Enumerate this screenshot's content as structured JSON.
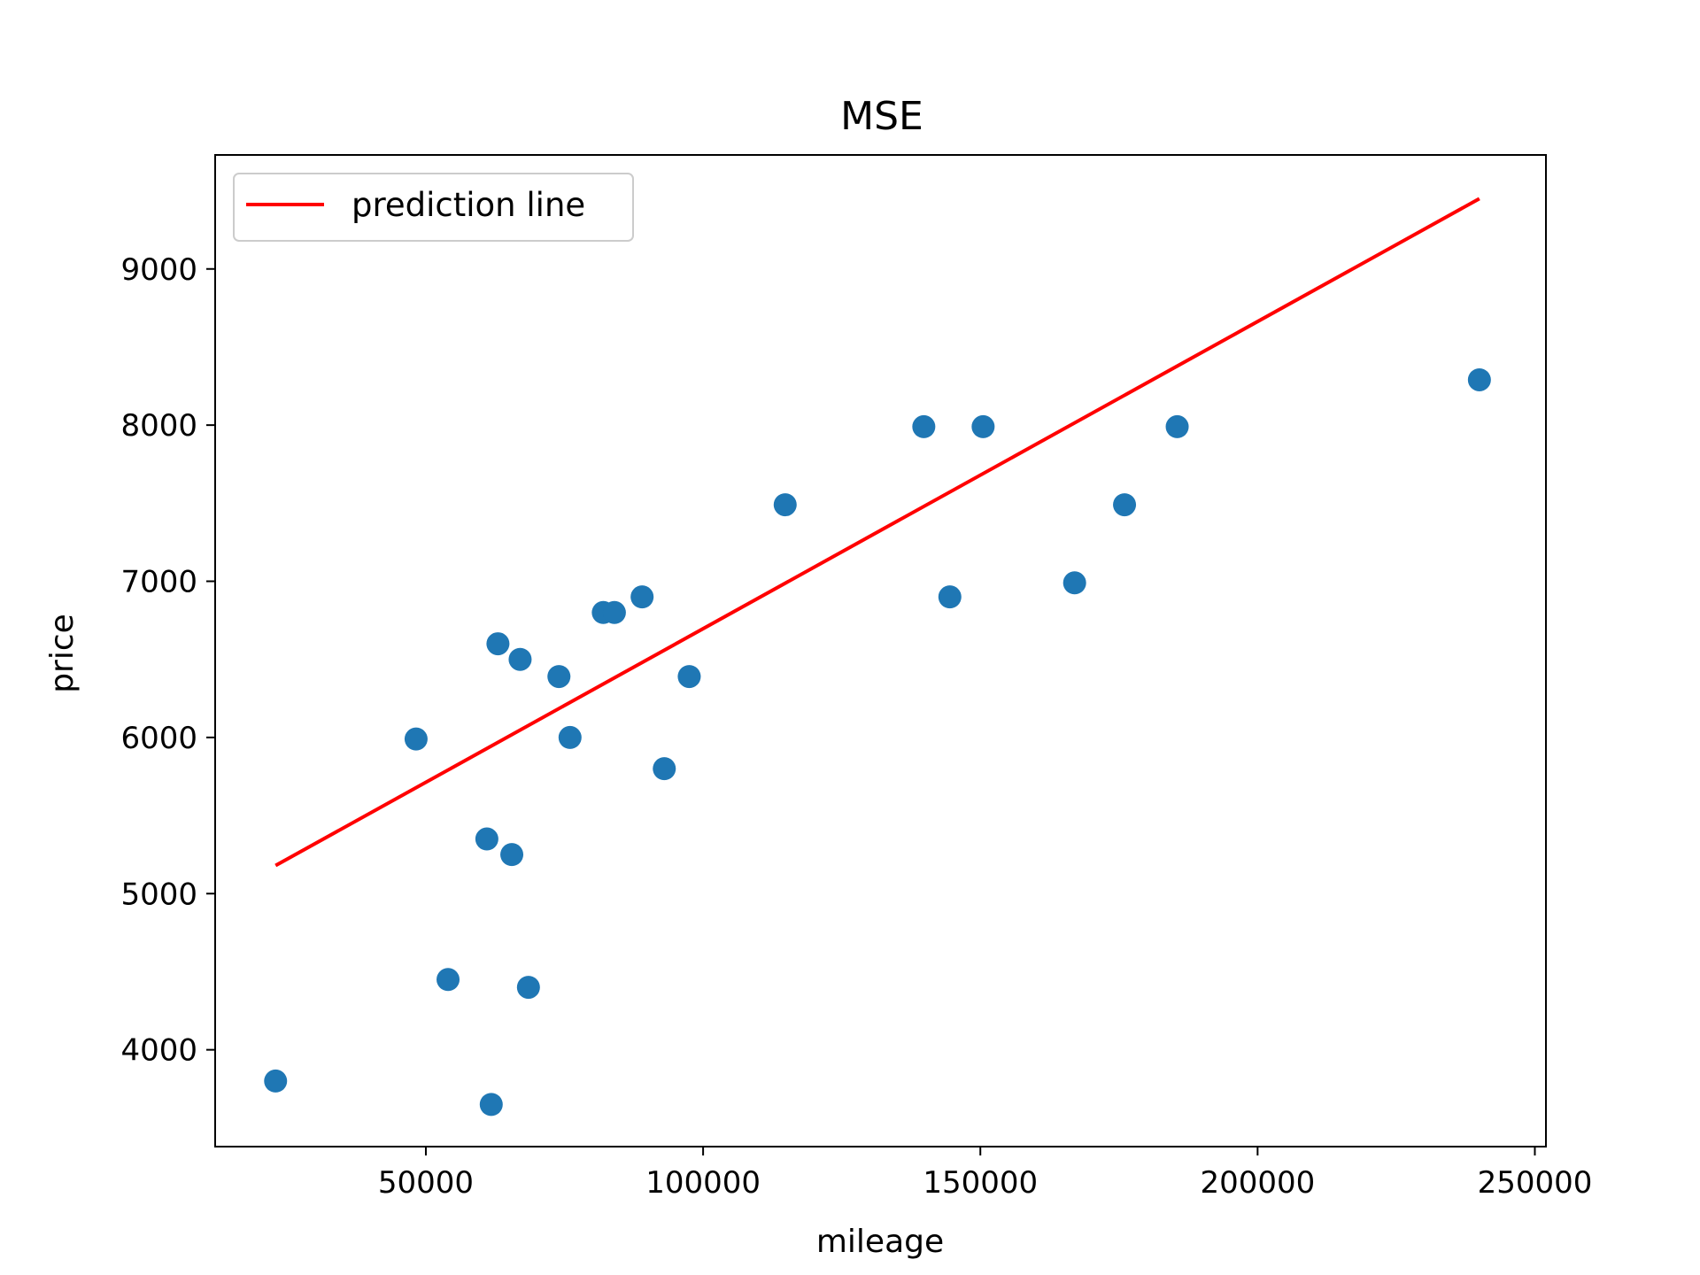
{
  "chart_data": {
    "type": "scatter",
    "title": "MSE",
    "xlabel": "mileage",
    "ylabel": "price",
    "xlim": [
      12000,
      252000
    ],
    "ylim": [
      3380,
      9730
    ],
    "x_ticks": [
      50000,
      100000,
      150000,
      200000,
      250000
    ],
    "x_tick_labels": [
      "50000",
      "100000",
      "150000",
      "200000",
      "250000"
    ],
    "y_ticks": [
      4000,
      5000,
      6000,
      7000,
      8000,
      9000
    ],
    "y_tick_labels": [
      "4000",
      "5000",
      "6000",
      "7000",
      "8000",
      "9000"
    ],
    "grid": false,
    "legend": {
      "position": "top-left",
      "entries": [
        "prediction line"
      ]
    },
    "series": [
      {
        "type": "scatter",
        "color": "#1f77b4",
        "points": [
          [
            22899,
            3800
          ],
          [
            48235,
            5990
          ],
          [
            54000,
            4450
          ],
          [
            61000,
            5350
          ],
          [
            61789,
            3650
          ],
          [
            63000,
            6600
          ],
          [
            65500,
            5250
          ],
          [
            67000,
            6500
          ],
          [
            68500,
            4400
          ],
          [
            74000,
            6390
          ],
          [
            76000,
            6000
          ],
          [
            82000,
            6800
          ],
          [
            84000,
            6800
          ],
          [
            89000,
            6900
          ],
          [
            93000,
            5800
          ],
          [
            97500,
            6390
          ],
          [
            114800,
            7490
          ],
          [
            139800,
            7990
          ],
          [
            144500,
            6900
          ],
          [
            150500,
            7990
          ],
          [
            167000,
            6990
          ],
          [
            176000,
            7490
          ],
          [
            185500,
            7990
          ],
          [
            240000,
            8290
          ]
        ]
      },
      {
        "name": "prediction line",
        "type": "line",
        "color": "#ff0000",
        "points": [
          [
            22899,
            5180
          ],
          [
            240000,
            9450
          ]
        ]
      }
    ]
  }
}
